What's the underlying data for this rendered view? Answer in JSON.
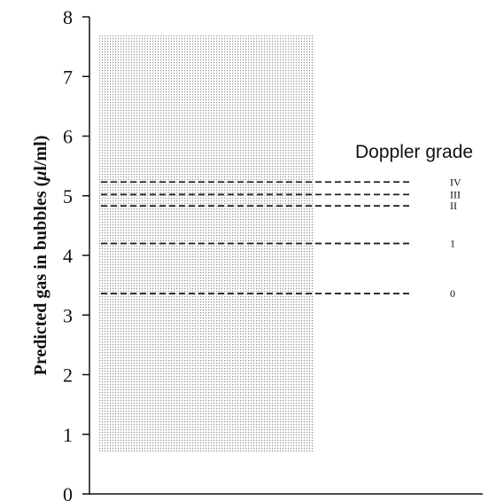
{
  "chart_data": {
    "type": "bar",
    "title": "Doppler grade",
    "ylabel_main": "Predicted gas in bubbles (",
    "ylabel_unit_greek": "μ",
    "ylabel_unit_rest": "l/ml)",
    "ylim": [
      0,
      8
    ],
    "yticks": [
      "0",
      "1",
      "2",
      "3",
      "4",
      "5",
      "6",
      "7",
      "8"
    ],
    "range": {
      "low": 0.7,
      "high": 7.7
    },
    "grades": [
      {
        "label": "IV",
        "value": 5.23
      },
      {
        "label": "III",
        "value": 5.02
      },
      {
        "label": "II",
        "value": 4.83
      },
      {
        "label": "1",
        "value": 4.2
      },
      {
        "label": "0",
        "value": 3.36
      }
    ],
    "colors": {
      "axis": "#111111",
      "dots": "#8a8a8a",
      "line": "#222222"
    }
  }
}
